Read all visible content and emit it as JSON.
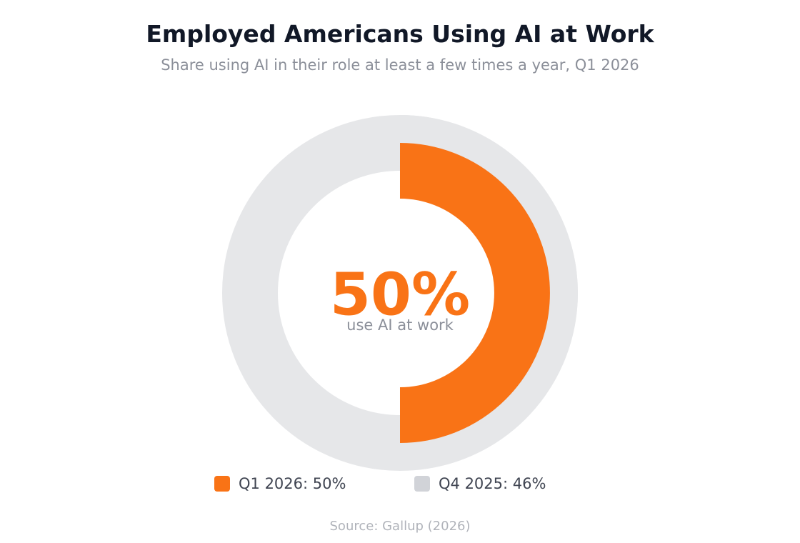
{
  "chart_data": {
    "type": "pie",
    "title": "Employed Americans Using AI at Work",
    "subtitle": "Share using AI in their role at least a few times a year, Q1 2026",
    "center_value": "50%",
    "center_caption": "use AI at work",
    "series": [
      {
        "name": "Q1 2026",
        "value": 50,
        "color": "#f97316",
        "label": "Q1 2026: 50%",
        "ring": "inner"
      },
      {
        "name": "Q4 2025",
        "value": 46,
        "color": "#d1d3d8",
        "label": "Q4 2025: 46%",
        "ring": "outer"
      }
    ],
    "track_color": "#e6e7e9",
    "source": "Source: Gallup (2026)"
  }
}
